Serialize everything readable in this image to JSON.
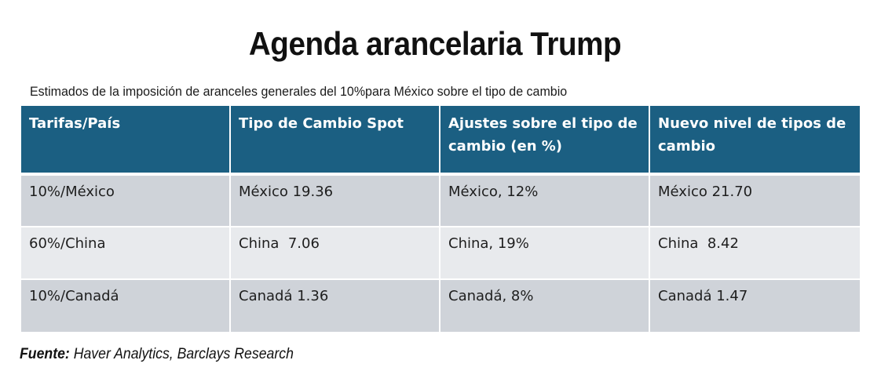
{
  "title": "Agenda arancelaria Trump",
  "subtitle": "Estimados de la imposición de aranceles generales del 10%para México sobre el tipo de cambio",
  "table": {
    "headers": [
      "Tarifas/País",
      "Tipo de Cambio Spot",
      "Ajustes sobre el tipo de cambio (en %)",
      "Nuevo nivel de tipos de cambio"
    ],
    "rows": [
      [
        "10%/México",
        "México 19.36",
        "México, 12%",
        "México 21.70"
      ],
      [
        "60%/China",
        "China  7.06",
        "China, 19%",
        "China  8.42"
      ],
      [
        "10%/Canadá",
        "Canadá 1.36",
        "Canadá, 8%",
        "Canadá 1.47"
      ]
    ]
  },
  "source": {
    "label": "Fuente:",
    "text": "Haver Analytics, Barclays Research"
  },
  "colors": {
    "header_bg": "#1b5f82",
    "row_dark": "#cfd3d9",
    "row_light": "#e8eaed"
  }
}
